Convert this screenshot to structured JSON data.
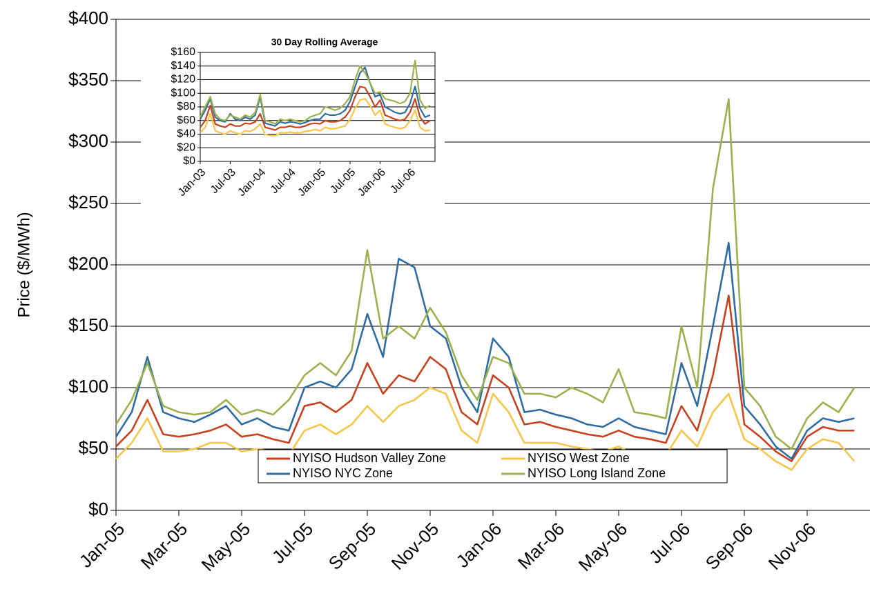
{
  "chart_data": [
    {
      "type": "line",
      "y_label": "Price ($/MWh)",
      "categories": [
        "Jan-05",
        null,
        null,
        null,
        "Mar-05",
        null,
        null,
        null,
        "May-05",
        null,
        null,
        null,
        "Jul-05",
        null,
        null,
        null,
        "Sep-05",
        null,
        null,
        null,
        "Nov-05",
        null,
        null,
        null,
        "Jan-06",
        null,
        null,
        null,
        "Mar-06",
        null,
        null,
        null,
        "May-06",
        null,
        null,
        null,
        "Jul-06",
        null,
        null,
        null,
        "Sep-06",
        null,
        null,
        null,
        "Nov-06",
        null,
        null,
        null
      ],
      "ylim": [
        0,
        400
      ],
      "yticks": [
        {
          "value": 0,
          "label": "$0"
        },
        {
          "value": 50,
          "label": "$50"
        },
        {
          "value": 100,
          "label": "$100"
        },
        {
          "value": 150,
          "label": "$150"
        },
        {
          "value": 200,
          "label": "$200"
        },
        {
          "value": 250,
          "label": "$250"
        },
        {
          "value": 300,
          "label": "$300"
        },
        {
          "value": 350,
          "label": "$350"
        },
        {
          "value": 400,
          "label": "$400"
        }
      ],
      "grid": true,
      "legend": "lower center",
      "series": [
        {
          "name": "NYISO Hudson Valley Zone",
          "color": "#c8411e",
          "values": [
            52,
            65,
            90,
            62,
            60,
            62,
            65,
            70,
            60,
            62,
            58,
            55,
            85,
            88,
            80,
            90,
            120,
            95,
            110,
            105,
            125,
            115,
            80,
            70,
            110,
            100,
            70,
            72,
            68,
            65,
            62,
            60,
            65,
            60,
            58,
            55,
            85,
            65,
            110,
            175,
            70,
            60,
            48,
            40,
            60,
            68,
            65,
            65
          ]
        },
        {
          "name": "NYISO West Zone",
          "color": "#f7c548",
          "values": [
            42,
            55,
            75,
            48,
            48,
            50,
            55,
            55,
            48,
            50,
            48,
            45,
            65,
            70,
            62,
            70,
            85,
            72,
            85,
            90,
            100,
            95,
            65,
            55,
            95,
            80,
            55,
            55,
            55,
            52,
            50,
            48,
            52,
            45,
            45,
            45,
            65,
            52,
            80,
            95,
            58,
            50,
            40,
            33,
            50,
            58,
            55,
            40
          ]
        },
        {
          "name": "NYISO NYC Zone",
          "color": "#2f6ba5",
          "values": [
            60,
            80,
            125,
            80,
            75,
            72,
            78,
            85,
            70,
            75,
            68,
            65,
            100,
            105,
            100,
            115,
            160,
            125,
            205,
            198,
            150,
            140,
            100,
            80,
            140,
            125,
            80,
            82,
            78,
            75,
            70,
            68,
            75,
            68,
            65,
            62,
            120,
            85,
            150,
            218,
            85,
            70,
            52,
            42,
            65,
            75,
            72,
            75
          ]
        },
        {
          "name": "NYISO Long Island Zone",
          "color": "#9bb14c",
          "values": [
            70,
            90,
            120,
            85,
            80,
            78,
            80,
            90,
            78,
            82,
            78,
            90,
            110,
            120,
            110,
            130,
            212,
            140,
            150,
            140,
            165,
            145,
            110,
            90,
            125,
            120,
            95,
            95,
            92,
            100,
            95,
            88,
            115,
            80,
            78,
            75,
            150,
            100,
            262,
            335,
            100,
            85,
            60,
            50,
            75,
            88,
            80,
            100
          ]
        }
      ]
    },
    {
      "type": "line",
      "title": "30 Day Rolling Average",
      "categories": [
        "Jan-03",
        null,
        null,
        null,
        null,
        null,
        "Jul-03",
        null,
        null,
        null,
        null,
        null,
        "Jan-04",
        null,
        null,
        null,
        null,
        null,
        "Jul-04",
        null,
        null,
        null,
        null,
        null,
        "Jan-05",
        null,
        null,
        null,
        null,
        null,
        "Jul-05",
        null,
        null,
        null,
        null,
        null,
        "Jan-06",
        null,
        null,
        null,
        null,
        null,
        "Jul-06",
        null,
        null,
        null,
        null
      ],
      "ylim": [
        0,
        160
      ],
      "yticks": [
        {
          "value": 0,
          "label": "$0"
        },
        {
          "value": 20,
          "label": "$20"
        },
        {
          "value": 40,
          "label": "$40"
        },
        {
          "value": 60,
          "label": "$60"
        },
        {
          "value": 80,
          "label": "$80"
        },
        {
          "value": 100,
          "label": "$100"
        },
        {
          "value": 120,
          "label": "$120"
        },
        {
          "value": 140,
          "label": "$140"
        },
        {
          "value": 160,
          "label": "$160"
        }
      ],
      "grid": true,
      "series": [
        {
          "color": "#f7c548",
          "values": [
            42,
            50,
            70,
            45,
            42,
            40,
            45,
            42,
            40,
            45,
            44,
            48,
            55,
            40,
            38,
            38,
            42,
            42,
            43,
            42,
            42,
            44,
            45,
            47,
            45,
            50,
            48,
            48,
            50,
            52,
            62,
            78,
            90,
            92,
            82,
            68,
            75,
            55,
            52,
            50,
            48,
            50,
            60,
            75,
            50,
            45,
            46
          ]
        },
        {
          "color": "#c8411e",
          "values": [
            50,
            60,
            82,
            55,
            52,
            50,
            55,
            52,
            52,
            56,
            55,
            58,
            70,
            50,
            48,
            46,
            50,
            50,
            52,
            50,
            50,
            52,
            55,
            56,
            55,
            60,
            58,
            58,
            60,
            65,
            75,
            95,
            110,
            108,
            95,
            80,
            90,
            68,
            65,
            62,
            60,
            62,
            72,
            92,
            65,
            55,
            60
          ]
        },
        {
          "color": "#2f6ba5",
          "values": [
            62,
            75,
            92,
            65,
            60,
            58,
            70,
            62,
            60,
            65,
            62,
            68,
            95,
            56,
            54,
            52,
            58,
            56,
            58,
            57,
            55,
            57,
            60,
            62,
            62,
            70,
            68,
            68,
            70,
            75,
            88,
            110,
            130,
            138,
            115,
            95,
            98,
            80,
            76,
            72,
            70,
            72,
            85,
            110,
            78,
            65,
            68
          ]
        },
        {
          "color": "#9bb14c",
          "values": [
            65,
            80,
            95,
            70,
            62,
            60,
            68,
            65,
            62,
            68,
            65,
            72,
            98,
            60,
            58,
            55,
            62,
            60,
            62,
            60,
            58,
            60,
            65,
            68,
            70,
            80,
            78,
            75,
            78,
            85,
            95,
            120,
            140,
            130,
            115,
            100,
            102,
            92,
            90,
            88,
            85,
            88,
            100,
            148,
            90,
            78,
            82
          ]
        }
      ]
    }
  ]
}
